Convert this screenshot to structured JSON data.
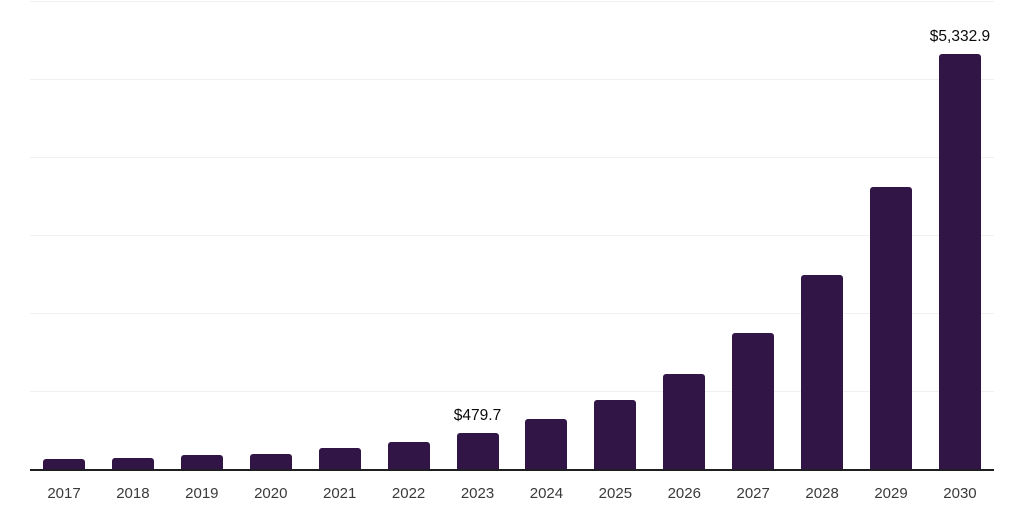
{
  "chart_data": {
    "type": "bar",
    "title": "",
    "xlabel": "",
    "ylabel": "",
    "categories": [
      "2017",
      "2018",
      "2019",
      "2020",
      "2021",
      "2022",
      "2023",
      "2024",
      "2025",
      "2026",
      "2027",
      "2028",
      "2029",
      "2030"
    ],
    "values": [
      140,
      160,
      190,
      205,
      276,
      357,
      479.7,
      650,
      895,
      1225,
      1758,
      2504,
      3633,
      5332.9
    ],
    "data_labels": {
      "2023": "$479.7",
      "2030": "$5,332.9"
    },
    "ylim": [
      0,
      6000
    ],
    "gridline_step": 1000,
    "grid": "horizontal light gray lines, no y-axis tick labels",
    "legend": "none",
    "bar_color": "#321547",
    "axis_line_color": "#1f1f1f",
    "gridline_color": "#f0f0f0",
    "tick_label_color": "#3a3a3a",
    "value_label_color": "#0a0a0a"
  }
}
